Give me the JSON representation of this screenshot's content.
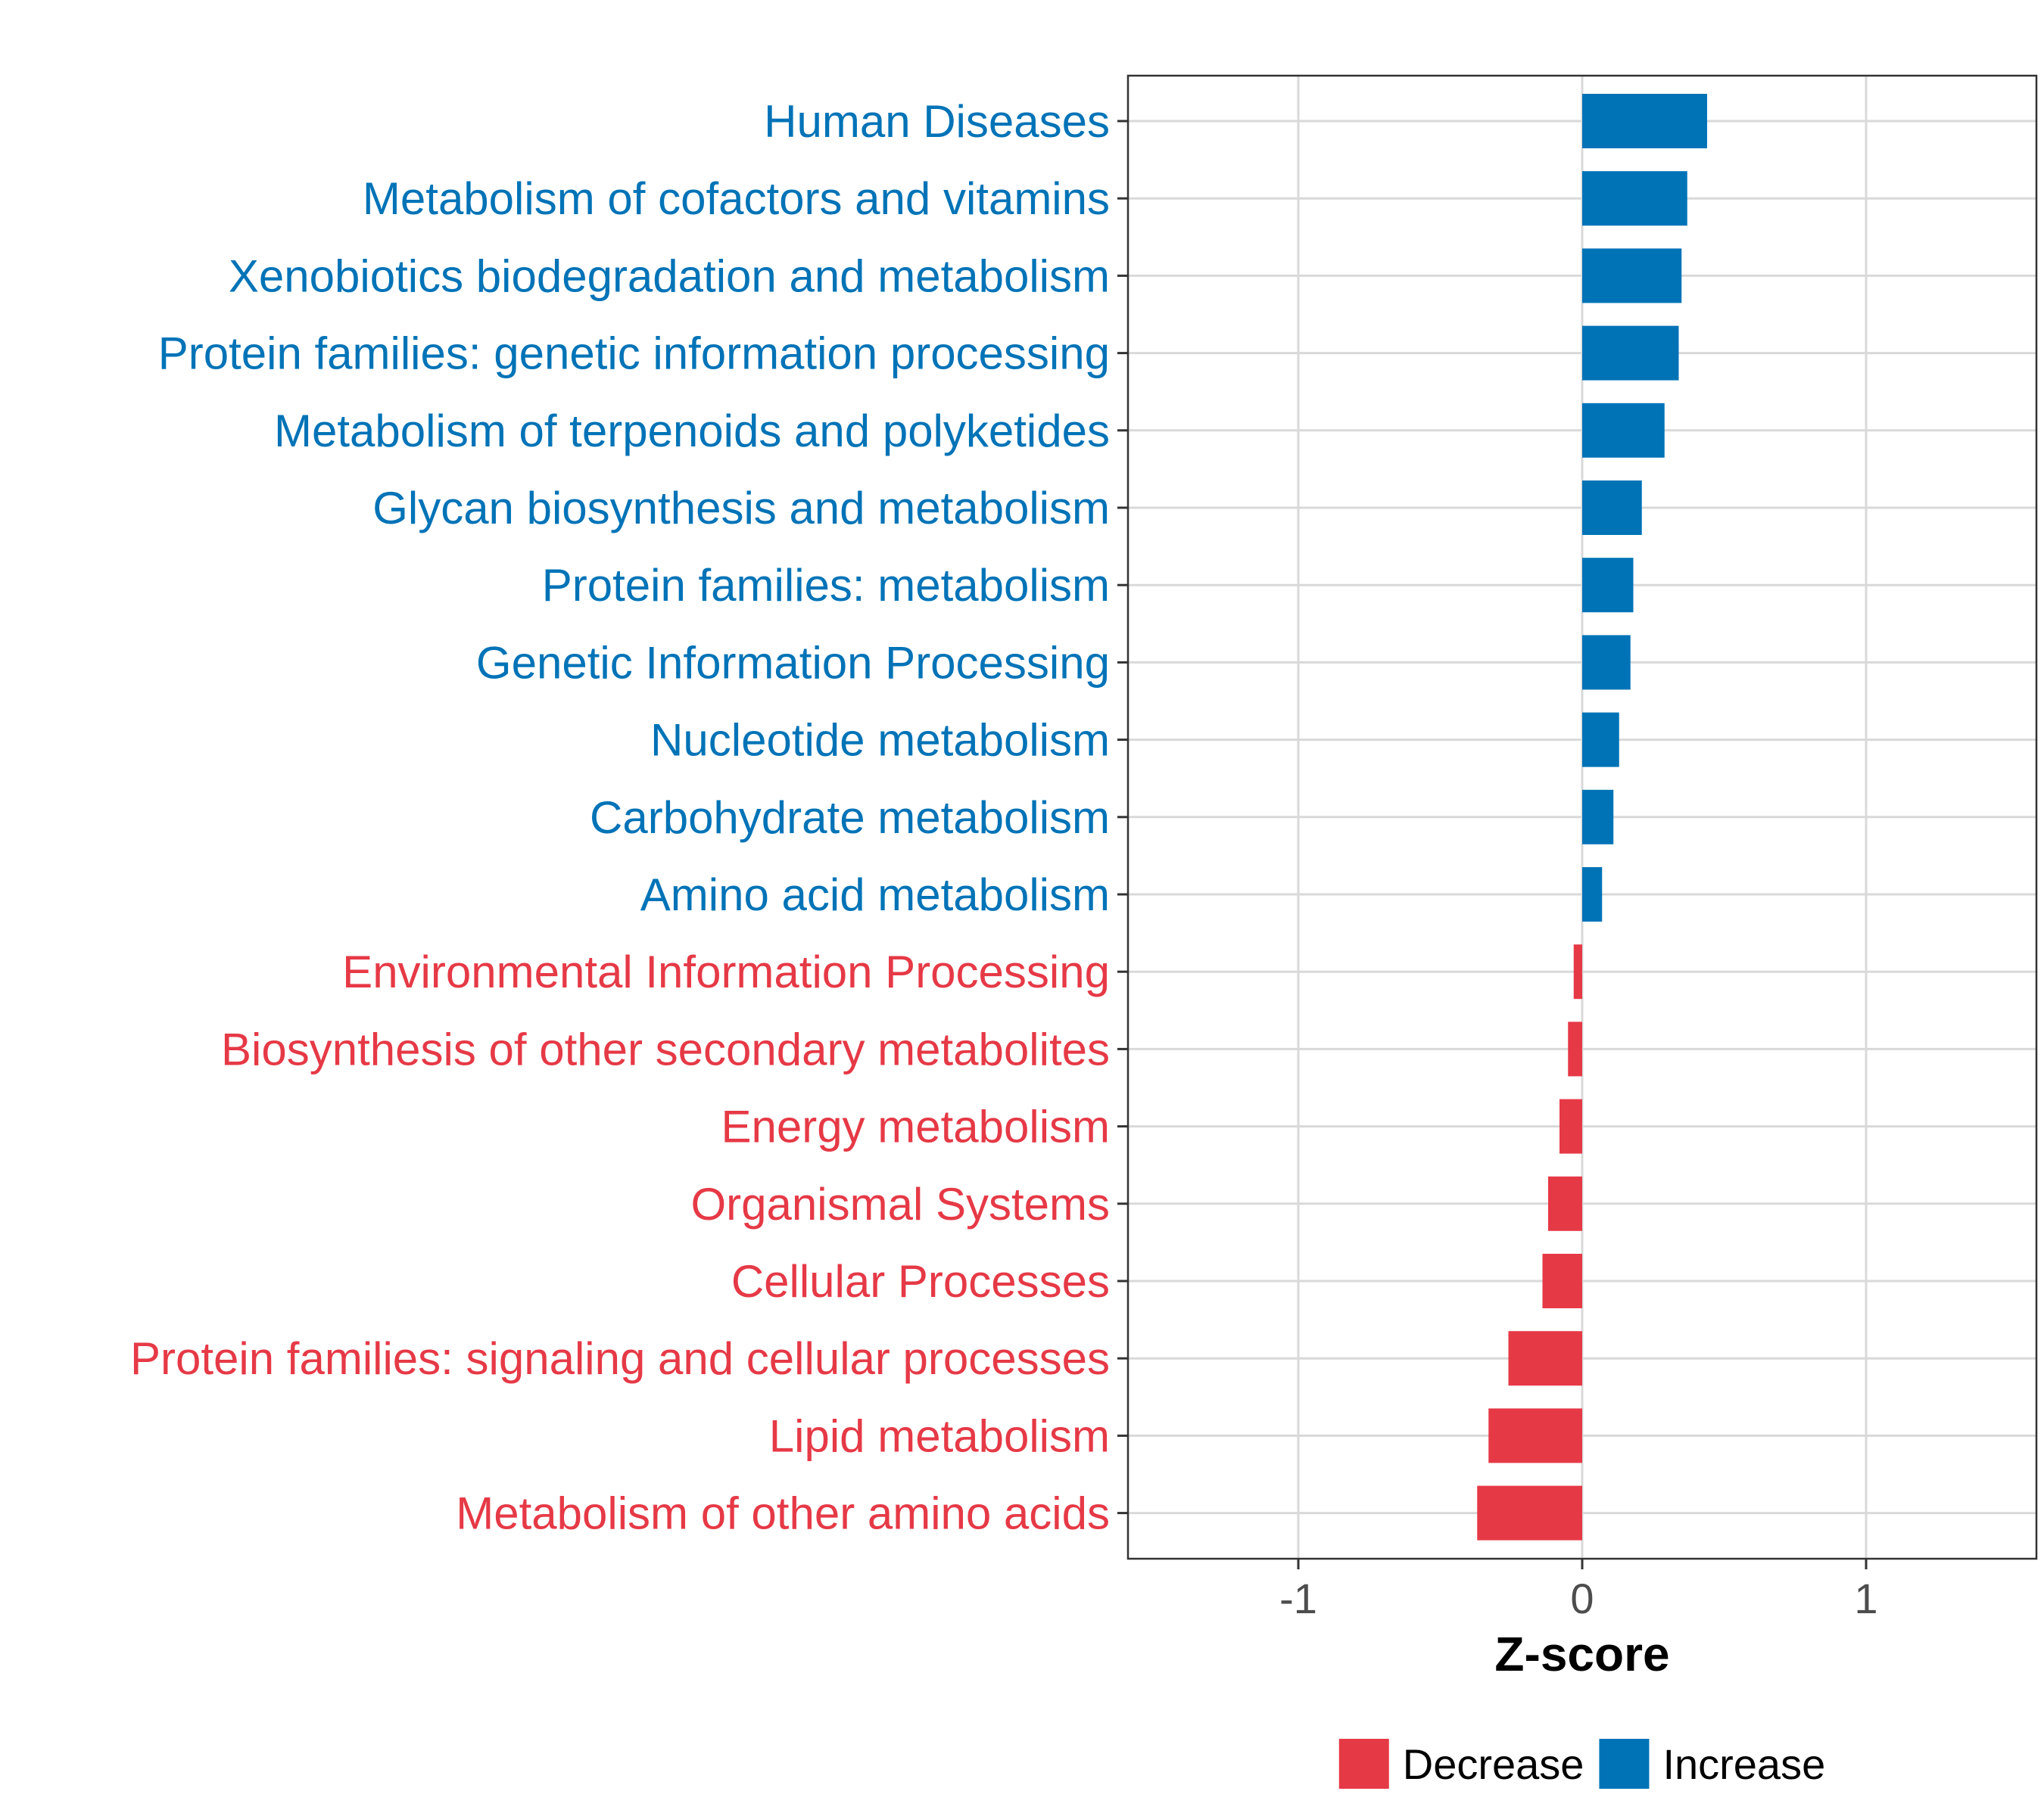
{
  "chart_data": {
    "type": "bar",
    "orientation": "horizontal",
    "title": "",
    "xlabel": "Z-score",
    "ylabel": "",
    "xlim": [
      -1.6,
      1.6
    ],
    "xticks": [
      -1,
      0,
      1
    ],
    "xtick_labels": [
      "-1",
      "0",
      "1"
    ],
    "grid": true,
    "categories": [
      "Human Diseases",
      "Metabolism of cofactors and vitamins",
      "Xenobiotics biodegradation and metabolism",
      "Protein families: genetic information processing",
      "Metabolism of terpenoids and polyketides",
      "Glycan biosynthesis and metabolism",
      "Protein families: metabolism",
      "Genetic Information Processing",
      "Nucleotide metabolism",
      "Carbohydrate metabolism",
      "Amino acid metabolism",
      "Environmental Information Processing",
      "Biosynthesis of other secondary metabolites",
      "Energy metabolism",
      "Organismal Systems",
      "Cellular Processes",
      "Protein families: signaling and cellular processes",
      "Lipid metabolism",
      "Metabolism of other amino acids"
    ],
    "values": [
      0.44,
      0.37,
      0.35,
      0.34,
      0.29,
      0.21,
      0.18,
      0.17,
      0.13,
      0.11,
      0.07,
      -0.03,
      -0.05,
      -0.08,
      -0.12,
      -0.14,
      -0.26,
      -0.33,
      -0.37
    ],
    "groups": [
      "Increase",
      "Increase",
      "Increase",
      "Increase",
      "Increase",
      "Increase",
      "Increase",
      "Increase",
      "Increase",
      "Increase",
      "Increase",
      "Decrease",
      "Decrease",
      "Decrease",
      "Decrease",
      "Decrease",
      "Decrease",
      "Decrease",
      "Decrease"
    ],
    "legend": {
      "position": "bottom",
      "entries": [
        {
          "label": "Decrease",
          "color": "#e63946"
        },
        {
          "label": "Increase",
          "color": "#0073b7"
        }
      ]
    }
  }
}
